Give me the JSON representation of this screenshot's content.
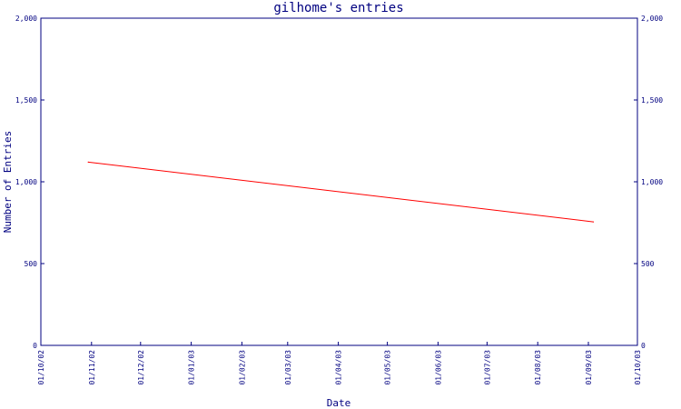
{
  "chart_data": {
    "type": "line",
    "title": "gilhome's entries",
    "xlabel": "Date",
    "ylabel": "Number of Entries",
    "ylim": [
      0,
      2000
    ],
    "yticks": [
      0,
      500,
      1000,
      1500,
      2000
    ],
    "ytick_labels": [
      "0",
      "500",
      "1,000",
      "1,500",
      "2,000"
    ],
    "xlim": [
      "2002-10-01",
      "2003-10-01"
    ],
    "x_ticks": [
      {
        "date": "2002-10-01",
        "label": "01/10/02"
      },
      {
        "date": "2002-11-01",
        "label": "01/11/02"
      },
      {
        "date": "2002-12-01",
        "label": "01/12/02"
      },
      {
        "date": "2003-01-01",
        "label": "01/01/03"
      },
      {
        "date": "2003-02-01",
        "label": "01/02/03"
      },
      {
        "date": "2003-03-01",
        "label": "01/03/03"
      },
      {
        "date": "2003-04-01",
        "label": "01/04/03"
      },
      {
        "date": "2003-05-01",
        "label": "01/05/03"
      },
      {
        "date": "2003-06-01",
        "label": "01/06/03"
      },
      {
        "date": "2003-07-01",
        "label": "01/07/03"
      },
      {
        "date": "2003-08-01",
        "label": "01/08/03"
      },
      {
        "date": "2003-09-01",
        "label": "01/09/03"
      },
      {
        "date": "2003-10-01",
        "label": "01/10/03"
      }
    ],
    "grid": false,
    "series": [
      {
        "color": "#ff0000",
        "points": [
          {
            "x": "2002-10-30",
            "y": 1120
          },
          {
            "x": "2003-09-04",
            "y": 755
          }
        ]
      }
    ],
    "colors": {
      "axis": "#000080",
      "text": "#000080",
      "line": "#ff0000",
      "background": "#ffffff"
    }
  }
}
